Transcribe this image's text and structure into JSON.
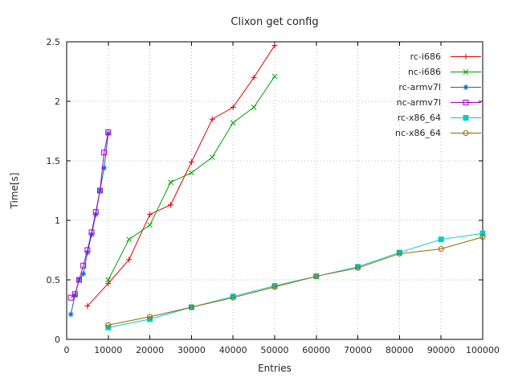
{
  "chart_data": {
    "type": "line",
    "title": "Clixon get config",
    "xlabel": "Entries",
    "ylabel": "Time[s]",
    "xlim": [
      0,
      100000
    ],
    "ylim": [
      0,
      2.5
    ],
    "xticks": [
      0,
      10000,
      20000,
      30000,
      40000,
      50000,
      60000,
      70000,
      80000,
      90000,
      100000
    ],
    "yticks": [
      0,
      0.5,
      1,
      1.5,
      2,
      2.5
    ],
    "grid": true,
    "legend_position": "top-right",
    "series": [
      {
        "name": "rc-i686",
        "color": "#dd0000",
        "marker": "plus",
        "x": [
          5000,
          10000,
          15000,
          20000,
          25000,
          30000,
          35000,
          40000,
          45000,
          50000
        ],
        "y": [
          0.28,
          0.47,
          0.67,
          1.05,
          1.13,
          1.49,
          1.85,
          1.95,
          2.2,
          2.47
        ]
      },
      {
        "name": "nc-i686",
        "color": "#00a000",
        "marker": "cross",
        "x": [
          10000,
          15000,
          20000,
          25000,
          30000,
          35000,
          40000,
          45000,
          50000
        ],
        "y": [
          0.5,
          0.84,
          0.96,
          1.32,
          1.4,
          1.53,
          1.82,
          1.95,
          2.21
        ]
      },
      {
        "name": "rc-armv7l",
        "color": "#0066cc",
        "marker": "asterisk",
        "x": [
          1000,
          2000,
          3000,
          4000,
          5000,
          6000,
          7000,
          8000,
          9000,
          10000
        ],
        "y": [
          0.21,
          0.37,
          0.5,
          0.55,
          0.73,
          0.88,
          1.05,
          1.25,
          1.44,
          1.73
        ]
      },
      {
        "name": "nc-armv7l",
        "color": "#a600c6",
        "marker": "square-open",
        "x": [
          1000,
          2000,
          3000,
          4000,
          5000,
          6000,
          7000,
          8000,
          9000,
          10000
        ],
        "y": [
          0.35,
          0.38,
          0.5,
          0.62,
          0.75,
          0.9,
          1.07,
          1.25,
          1.57,
          1.74
        ]
      },
      {
        "name": "rc-x86_64",
        "color": "#00cdcd",
        "marker": "square-filled",
        "x": [
          10000,
          20000,
          30000,
          40000,
          50000,
          60000,
          70000,
          80000,
          90000,
          100000
        ],
        "y": [
          0.1,
          0.17,
          0.27,
          0.36,
          0.45,
          0.53,
          0.61,
          0.73,
          0.84,
          0.89
        ]
      },
      {
        "name": "nc-x86_64",
        "color": "#996600",
        "marker": "circle-open",
        "x": [
          10000,
          20000,
          30000,
          40000,
          50000,
          60000,
          70000,
          80000,
          90000,
          100000
        ],
        "y": [
          0.12,
          0.19,
          0.27,
          0.35,
          0.44,
          0.53,
          0.6,
          0.72,
          0.76,
          0.86
        ]
      }
    ]
  }
}
